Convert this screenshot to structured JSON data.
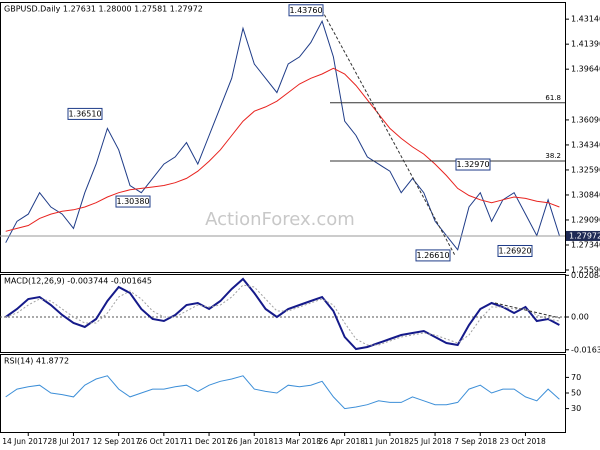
{
  "chart_data": [
    {
      "type": "line",
      "title": "GBPUSD.Daily 1.27631 1.28000 1.27581 1.27972",
      "categories": [
        null,
        null,
        "14 Jun 2017",
        null,
        null,
        null,
        "28 Jul 2017",
        null,
        null,
        null,
        "12 Sep 2017",
        null,
        null,
        null,
        "26 Oct 2017",
        null,
        null,
        null,
        "11 Dec 2017",
        null,
        null,
        null,
        "26 Jan 2018",
        null,
        null,
        null,
        "13 Mar 2018",
        null,
        null,
        null,
        "26 Apr 2018",
        null,
        null,
        null,
        "11 Jun 2018",
        null,
        null,
        null,
        "25 Jul 2018",
        null,
        null,
        null,
        "7 Sep 2018",
        null,
        null,
        null,
        "23 Oct 2018",
        null,
        null,
        null
      ],
      "series": [
        {
          "color": "#1f3c88",
          "values": [
            1.275,
            1.29,
            1.295,
            1.31,
            1.3,
            1.295,
            1.285,
            1.31,
            1.33,
            1.355,
            1.34,
            1.315,
            1.31,
            1.32,
            1.33,
            1.335,
            1.345,
            1.33,
            1.35,
            1.37,
            1.39,
            1.425,
            1.4,
            1.39,
            1.38,
            1.4,
            1.405,
            1.415,
            1.43,
            1.405,
            1.36,
            1.35,
            1.335,
            1.33,
            1.325,
            1.31,
            1.32,
            1.31,
            1.29,
            1.28,
            1.27,
            1.3,
            1.31,
            1.29,
            1.305,
            1.31,
            1.295,
            1.28,
            1.305,
            1.28
          ]
        },
        {
          "color": "#e8231f",
          "values": [
            1.283,
            1.285,
            1.287,
            1.292,
            1.295,
            1.297,
            1.298,
            1.3,
            1.303,
            1.307,
            1.31,
            1.312,
            1.313,
            1.314,
            1.315,
            1.317,
            1.32,
            1.325,
            1.332,
            1.34,
            1.35,
            1.36,
            1.367,
            1.37,
            1.374,
            1.38,
            1.386,
            1.39,
            1.393,
            1.397,
            1.393,
            1.385,
            1.375,
            1.365,
            1.355,
            1.348,
            1.342,
            1.337,
            1.33,
            1.322,
            1.313,
            1.308,
            1.305,
            1.303,
            1.305,
            1.307,
            1.306,
            1.304,
            1.303,
            1.3
          ]
        }
      ],
      "ylim": [
        1.2545,
        1.4434
      ],
      "yticks": [
        {
          "value": 1.2559,
          "label": "1.25590"
        },
        {
          "value": 1.2734,
          "label": "1.27340"
        },
        {
          "value": 1.2909,
          "label": "1.29090"
        },
        {
          "value": 1.3084,
          "label": "1.30840"
        },
        {
          "value": 1.3259,
          "label": "1.32590"
        },
        {
          "value": 1.3434,
          "label": "1.34340"
        },
        {
          "value": 1.3609,
          "label": "1.36090"
        },
        {
          "value": 1.3964,
          "label": "1.39640"
        },
        {
          "value": 1.4139,
          "label": "1.41390"
        },
        {
          "value": 1.4314,
          "label": "1.43140"
        }
      ],
      "annotations": [
        {
          "value": 1.4376,
          "label": "1.43760"
        },
        {
          "value": 1.3651,
          "label": "1.36510"
        },
        {
          "value": 1.3038,
          "label": "1.30380"
        },
        {
          "value": 1.3297,
          "label": "1.32970"
        },
        {
          "value": 1.2661,
          "label": "1.26610"
        },
        {
          "value": 1.2692,
          "label": "1.26920"
        }
      ],
      "fib_levels": [
        {
          "label": "61.8",
          "value": 1.3729
        },
        {
          "label": "38.2",
          "value": 1.3322
        }
      ],
      "last_price": {
        "value": 1.27972,
        "label": "1.27972"
      },
      "watermark": "ActionForex.com"
    },
    {
      "type": "line",
      "title": "MACD(12,26,9) -0.003744 -0.001645",
      "series": [
        {
          "color": "#151a8a",
          "values": [
            0.0,
            0.004,
            0.009,
            0.01,
            0.006,
            0.001,
            -0.003,
            -0.005,
            -0.001,
            0.008,
            0.015,
            0.012,
            0.004,
            -0.001,
            -0.002,
            0.001,
            0.006,
            0.007,
            0.004,
            0.008,
            0.014,
            0.019,
            0.012,
            0.004,
            0.0,
            0.004,
            0.006,
            0.008,
            0.01,
            0.003,
            -0.01,
            -0.016,
            -0.015,
            -0.013,
            -0.011,
            -0.009,
            -0.008,
            -0.007,
            -0.01,
            -0.013,
            -0.014,
            -0.004,
            0.004,
            0.007,
            0.005,
            0.002,
            0.005,
            -0.002,
            -0.001,
            -0.004
          ]
        },
        {
          "color": "#a0a0a0",
          "values": [
            0.0,
            0.002,
            0.006,
            0.009,
            0.008,
            0.004,
            0.0,
            -0.003,
            -0.003,
            0.002,
            0.01,
            0.013,
            0.009,
            0.003,
            0.0,
            0.0,
            0.003,
            0.006,
            0.005,
            0.006,
            0.01,
            0.016,
            0.015,
            0.009,
            0.003,
            0.003,
            0.005,
            0.007,
            0.009,
            0.006,
            -0.003,
            -0.011,
            -0.014,
            -0.014,
            -0.012,
            -0.01,
            -0.009,
            -0.008,
            -0.009,
            -0.011,
            -0.013,
            -0.009,
            -0.001,
            0.005,
            0.005,
            0.004,
            0.004,
            0.001,
            -0.001,
            -0.002
          ]
        }
      ],
      "ylim": [
        -0.0175,
        0.0215
      ],
      "yticks": [
        0.020848,
        {
          "value": 0,
          "label": "0.00"
        },
        -0.016389
      ]
    },
    {
      "type": "line",
      "title": "RSI(14) 41.8772",
      "series": [
        {
          "color": "#3d8fd8",
          "values": [
            45,
            55,
            58,
            60,
            50,
            48,
            45,
            60,
            68,
            72,
            55,
            45,
            50,
            55,
            55,
            58,
            60,
            52,
            60,
            65,
            68,
            72,
            55,
            52,
            50,
            60,
            58,
            60,
            65,
            45,
            30,
            32,
            35,
            40,
            38,
            38,
            45,
            40,
            35,
            35,
            38,
            55,
            60,
            50,
            55,
            55,
            45,
            40,
            55,
            42
          ]
        }
      ],
      "ylim": [
        0,
        100
      ],
      "yticks": [
        70,
        50,
        30
      ]
    }
  ]
}
